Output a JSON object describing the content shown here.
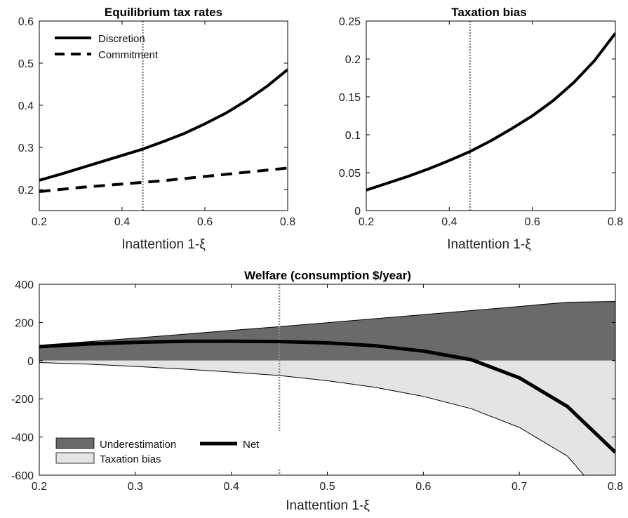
{
  "chart_data": [
    {
      "type": "line",
      "title": "Equilibrium tax rates",
      "xlabel": "Inattention 1-ξ",
      "ylabel": "",
      "xlim": [
        0.2,
        0.8
      ],
      "ylim": [
        0.15,
        0.6
      ],
      "xticks": [
        0.2,
        0.4,
        0.6,
        0.8
      ],
      "yticks": [
        0.2,
        0.3,
        0.4,
        0.5,
        0.6
      ],
      "xtick_labels": [
        "0.2",
        "0.4",
        "0.6",
        "0.8"
      ],
      "ytick_labels": [
        "0.2",
        "0.3",
        "0.4",
        "0.5",
        "0.6"
      ],
      "vline": 0.45,
      "legend_position": "top-left",
      "x": [
        0.2,
        0.25,
        0.3,
        0.35,
        0.4,
        0.45,
        0.5,
        0.55,
        0.6,
        0.65,
        0.7,
        0.75,
        0.8
      ],
      "series": [
        {
          "name": "Discretion",
          "style": "solid",
          "values": [
            0.222,
            0.236,
            0.251,
            0.266,
            0.281,
            0.296,
            0.314,
            0.333,
            0.356,
            0.381,
            0.411,
            0.445,
            0.485
          ]
        },
        {
          "name": "Commitment",
          "style": "dashed",
          "values": [
            0.195,
            0.2,
            0.205,
            0.209,
            0.213,
            0.217,
            0.221,
            0.226,
            0.231,
            0.236,
            0.241,
            0.246,
            0.251
          ]
        }
      ]
    },
    {
      "type": "line",
      "title": "Taxation bias",
      "xlabel": "Inattention 1-ξ",
      "ylabel": "",
      "xlim": [
        0.2,
        0.8
      ],
      "ylim": [
        0,
        0.25
      ],
      "xticks": [
        0.2,
        0.4,
        0.6,
        0.8
      ],
      "yticks": [
        0,
        0.05,
        0.1,
        0.15,
        0.2,
        0.25
      ],
      "xtick_labels": [
        "0.2",
        "0.4",
        "0.6",
        "0.8"
      ],
      "ytick_labels": [
        "0",
        "0.05",
        "0.1",
        "0.15",
        "0.2",
        "0.25"
      ],
      "vline": 0.45,
      "x": [
        0.2,
        0.25,
        0.3,
        0.35,
        0.4,
        0.45,
        0.5,
        0.55,
        0.6,
        0.65,
        0.7,
        0.75,
        0.8
      ],
      "series": [
        {
          "name": "",
          "style": "solid",
          "values": [
            0.027,
            0.036,
            0.045,
            0.055,
            0.066,
            0.078,
            0.092,
            0.108,
            0.125,
            0.145,
            0.169,
            0.198,
            0.234
          ]
        }
      ]
    },
    {
      "type": "area",
      "title": "Welfare (consumption $/year)",
      "xlabel": "Inattention 1-ξ",
      "ylabel": "",
      "xlim": [
        0.2,
        0.8
      ],
      "ylim": [
        -600,
        400
      ],
      "xticks": [
        0.2,
        0.3,
        0.4,
        0.5,
        0.6,
        0.7,
        0.8
      ],
      "yticks": [
        -600,
        -400,
        -200,
        0,
        200,
        400
      ],
      "xtick_labels": [
        "0.2",
        "0.3",
        "0.4",
        "0.5",
        "0.6",
        "0.7",
        "0.8"
      ],
      "ytick_labels": [
        "-600",
        "-400",
        "-200",
        "0",
        "200",
        "400"
      ],
      "vline": 0.45,
      "legend_position": "bottom-left",
      "x": [
        0.2,
        0.25,
        0.3,
        0.35,
        0.4,
        0.45,
        0.5,
        0.55,
        0.6,
        0.65,
        0.7,
        0.75,
        0.8
      ],
      "series": [
        {
          "name": "Underestimation",
          "style": "fill-dark",
          "values": [
            80,
            99,
            118,
            138,
            158,
            178,
            199,
            220,
            241,
            262,
            284,
            306,
            310
          ]
        },
        {
          "name": "Taxation bias",
          "style": "fill-light",
          "values": [
            -10,
            -18,
            -30,
            -44,
            -60,
            -78,
            -105,
            -140,
            -187,
            -252,
            -350,
            -500,
            -790
          ]
        },
        {
          "name": "Net",
          "style": "solid-thick",
          "values": [
            73,
            87,
            96,
            101,
            102,
            100,
            93,
            78,
            50,
            5,
            -90,
            -240,
            -480
          ]
        }
      ]
    }
  ]
}
